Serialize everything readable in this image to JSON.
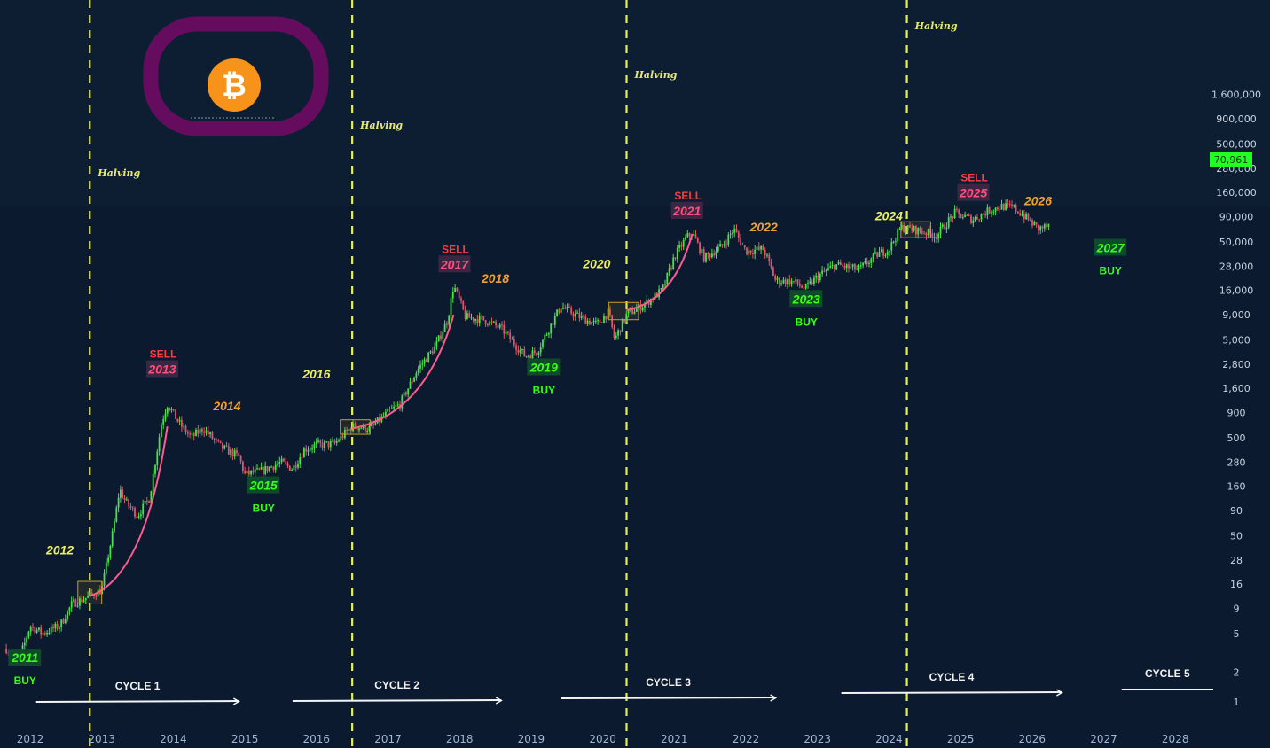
{
  "chart_data": {
    "type": "candlestick-log",
    "y_scale": "log",
    "y_ticks": [
      "1",
      "2",
      "5",
      "9",
      "16",
      "28",
      "50",
      "90",
      "160",
      "280",
      "500",
      "900",
      "1,600",
      "2,800",
      "5,000",
      "9,000",
      "16,000",
      "28,000",
      "50,000",
      "90,000",
      "160,000",
      "280,000",
      "500,000",
      "900,000",
      "1,600,000"
    ],
    "y_tick_values": [
      1,
      2,
      5,
      9,
      16,
      28,
      50,
      90,
      160,
      280,
      500,
      900,
      1600,
      2800,
      5000,
      9000,
      16000,
      28000,
      50000,
      90000,
      160000,
      280000,
      500000,
      900000,
      1600000
    ],
    "x_ticks": [
      "2012",
      "2013",
      "2014",
      "2015",
      "2016",
      "2017",
      "2018",
      "2019",
      "2020",
      "2021",
      "2022",
      "2023",
      "2024",
      "2025",
      "2026",
      "2027",
      "2028"
    ],
    "x_range": [
      "2011-09",
      "2028-08"
    ],
    "current_price": "70,961",
    "halvings": [
      {
        "label": "Halving",
        "date": "2012-11"
      },
      {
        "label": "Halving",
        "date": "2016-07"
      },
      {
        "label": "Halving",
        "date": "2020-05"
      },
      {
        "label": "Halving",
        "date": "2024-04"
      }
    ],
    "price_path": [
      [
        "2011-09",
        3.5
      ],
      [
        "2011-11",
        2.5
      ],
      [
        "2012-01",
        6
      ],
      [
        "2012-03",
        5
      ],
      [
        "2012-06",
        6
      ],
      [
        "2012-08",
        10
      ],
      [
        "2012-11",
        12
      ],
      [
        "2013-01",
        14
      ],
      [
        "2013-03",
        60
      ],
      [
        "2013-04",
        150
      ],
      [
        "2013-05",
        110
      ],
      [
        "2013-07",
        80
      ],
      [
        "2013-09",
        120
      ],
      [
        "2013-11",
        700
      ],
      [
        "2013-12",
        1100
      ],
      [
        "2014-02",
        700
      ],
      [
        "2014-04",
        500
      ],
      [
        "2014-06",
        620
      ],
      [
        "2014-09",
        400
      ],
      [
        "2014-12",
        320
      ],
      [
        "2015-01",
        210
      ],
      [
        "2015-04",
        230
      ],
      [
        "2015-07",
        280
      ],
      [
        "2015-09",
        240
      ],
      [
        "2015-11",
        380
      ],
      [
        "2016-01",
        420
      ],
      [
        "2016-04",
        430
      ],
      [
        "2016-07",
        650
      ],
      [
        "2016-10",
        620
      ],
      [
        "2017-01",
        900
      ],
      [
        "2017-03",
        1100
      ],
      [
        "2017-06",
        2500
      ],
      [
        "2017-09",
        4300
      ],
      [
        "2017-11",
        8000
      ],
      [
        "2017-12",
        18000
      ],
      [
        "2018-02",
        8500
      ],
      [
        "2018-05",
        8000
      ],
      [
        "2018-08",
        6500
      ],
      [
        "2018-11",
        4000
      ],
      [
        "2018-12",
        3400
      ],
      [
        "2019-02",
        3800
      ],
      [
        "2019-06",
        11000
      ],
      [
        "2019-07",
        10000
      ],
      [
        "2019-10",
        8000
      ],
      [
        "2019-12",
        7200
      ],
      [
        "2020-02",
        9500
      ],
      [
        "2020-03",
        5000
      ],
      [
        "2020-05",
        9000
      ],
      [
        "2020-08",
        11500
      ],
      [
        "2020-11",
        16000
      ],
      [
        "2021-01",
        35000
      ],
      [
        "2021-03",
        55000
      ],
      [
        "2021-04",
        62000
      ],
      [
        "2021-06",
        34000
      ],
      [
        "2021-09",
        45000
      ],
      [
        "2021-11",
        67000
      ],
      [
        "2022-01",
        40000
      ],
      [
        "2022-04",
        42000
      ],
      [
        "2022-06",
        20000
      ],
      [
        "2022-09",
        19500
      ],
      [
        "2022-11",
        16500
      ],
      [
        "2023-01",
        22000
      ],
      [
        "2023-04",
        29000
      ],
      [
        "2023-08",
        26000
      ],
      [
        "2023-11",
        37000
      ],
      [
        "2024-01",
        42000
      ],
      [
        "2024-03",
        70000
      ],
      [
        "2024-06",
        65000
      ],
      [
        "2024-09",
        58000
      ],
      [
        "2024-12",
        98000
      ],
      [
        "2025-03",
        84000
      ],
      [
        "2025-06",
        106000
      ],
      [
        "2025-08",
        115000
      ],
      [
        "2025-10",
        110000
      ],
      [
        "2025-12",
        88000
      ],
      [
        "2026-02",
        68000
      ],
      [
        "2026-04",
        72000
      ]
    ],
    "parabolic_curves": [
      {
        "from": [
          "2012-11",
          12
        ],
        "to": [
          "2013-12",
          650
        ]
      },
      {
        "from": [
          "2016-07",
          620
        ],
        "to": [
          "2017-12",
          9000
        ]
      },
      {
        "from": [
          "2020-05",
          10000
        ],
        "to": [
          "2021-04",
          60000
        ]
      }
    ],
    "boxes": [
      {
        "from": [
          "2012-09",
          10
        ],
        "to": [
          "2013-01",
          17
        ]
      },
      {
        "from": [
          "2016-05",
          540
        ],
        "to": [
          "2016-10",
          760
        ]
      },
      {
        "from": [
          "2020-02",
          8000
        ],
        "to": [
          "2020-07",
          12000
        ]
      },
      {
        "from": [
          "2024-03",
          55000
        ],
        "to": [
          "2024-08",
          80000
        ]
      }
    ],
    "year_labels": [
      {
        "text": "2011",
        "kind": "buy",
        "date": "2011-12",
        "price": 2.6
      },
      {
        "text": "2012",
        "kind": "neutral",
        "date": "2012-06",
        "price": 32
      },
      {
        "text": "2013",
        "kind": "sell",
        "date": "2013-11",
        "price": 2300
      },
      {
        "text": "2014",
        "kind": "down",
        "date": "2014-10",
        "price": 950
      },
      {
        "text": "2015",
        "kind": "buy",
        "date": "2015-04",
        "price": 150
      },
      {
        "text": "2016",
        "kind": "neutral",
        "date": "2016-01",
        "price": 2000
      },
      {
        "text": "2017",
        "kind": "sell",
        "date": "2017-12",
        "price": 27000
      },
      {
        "text": "2018",
        "kind": "down",
        "date": "2018-07",
        "price": 19000
      },
      {
        "text": "2019",
        "kind": "buy",
        "date": "2019-03",
        "price": 2400
      },
      {
        "text": "2020",
        "kind": "neutral",
        "date": "2019-12",
        "price": 27000
      },
      {
        "text": "2021",
        "kind": "sell",
        "date": "2021-03",
        "price": 95000
      },
      {
        "text": "2022",
        "kind": "down",
        "date": "2022-04",
        "price": 64000
      },
      {
        "text": "2023",
        "kind": "buy",
        "date": "2022-11",
        "price": 12000
      },
      {
        "text": "2024",
        "kind": "neutral",
        "date": "2024-01",
        "price": 83000
      },
      {
        "text": "2025",
        "kind": "sell",
        "date": "2025-03",
        "price": 145000
      },
      {
        "text": "2026",
        "kind": "down",
        "date": "2026-02",
        "price": 118000
      },
      {
        "text": "2027",
        "kind": "buy",
        "date": "2027-02",
        "price": 40000
      }
    ],
    "cycles": [
      {
        "label": "CYCLE 1",
        "from": "2012-02",
        "to": "2014-12"
      },
      {
        "label": "CYCLE 2",
        "from": "2015-09",
        "to": "2018-08"
      },
      {
        "label": "CYCLE 3",
        "from": "2019-06",
        "to": "2022-06"
      },
      {
        "label": "CYCLE 4",
        "from": "2023-05",
        "to": "2026-06"
      },
      {
        "label": "CYCLE 5",
        "from": "2027-04",
        "to": "2028-08"
      }
    ],
    "sell_text": "SELL",
    "buy_text": "BUY"
  },
  "colors": {
    "background": "#0b1a2e",
    "bull": "#4be14b",
    "bear": "#e0556e",
    "halving": "#e6ef52",
    "sell_text": "#ff3b3b",
    "sell_year": "#ff4f7b",
    "buy_text": "#39ff14",
    "buy_year": "#39ff14",
    "down_year": "#f0a02e",
    "neutral_year": "#ecf05a",
    "curve": "#ff5c8f",
    "badge_bg": "#22ff22",
    "logo_ring": "#650c5e",
    "logo_coin": "#f7931a"
  },
  "logo": {
    "icon": "bitcoin-logo",
    "glyph": "₿"
  }
}
